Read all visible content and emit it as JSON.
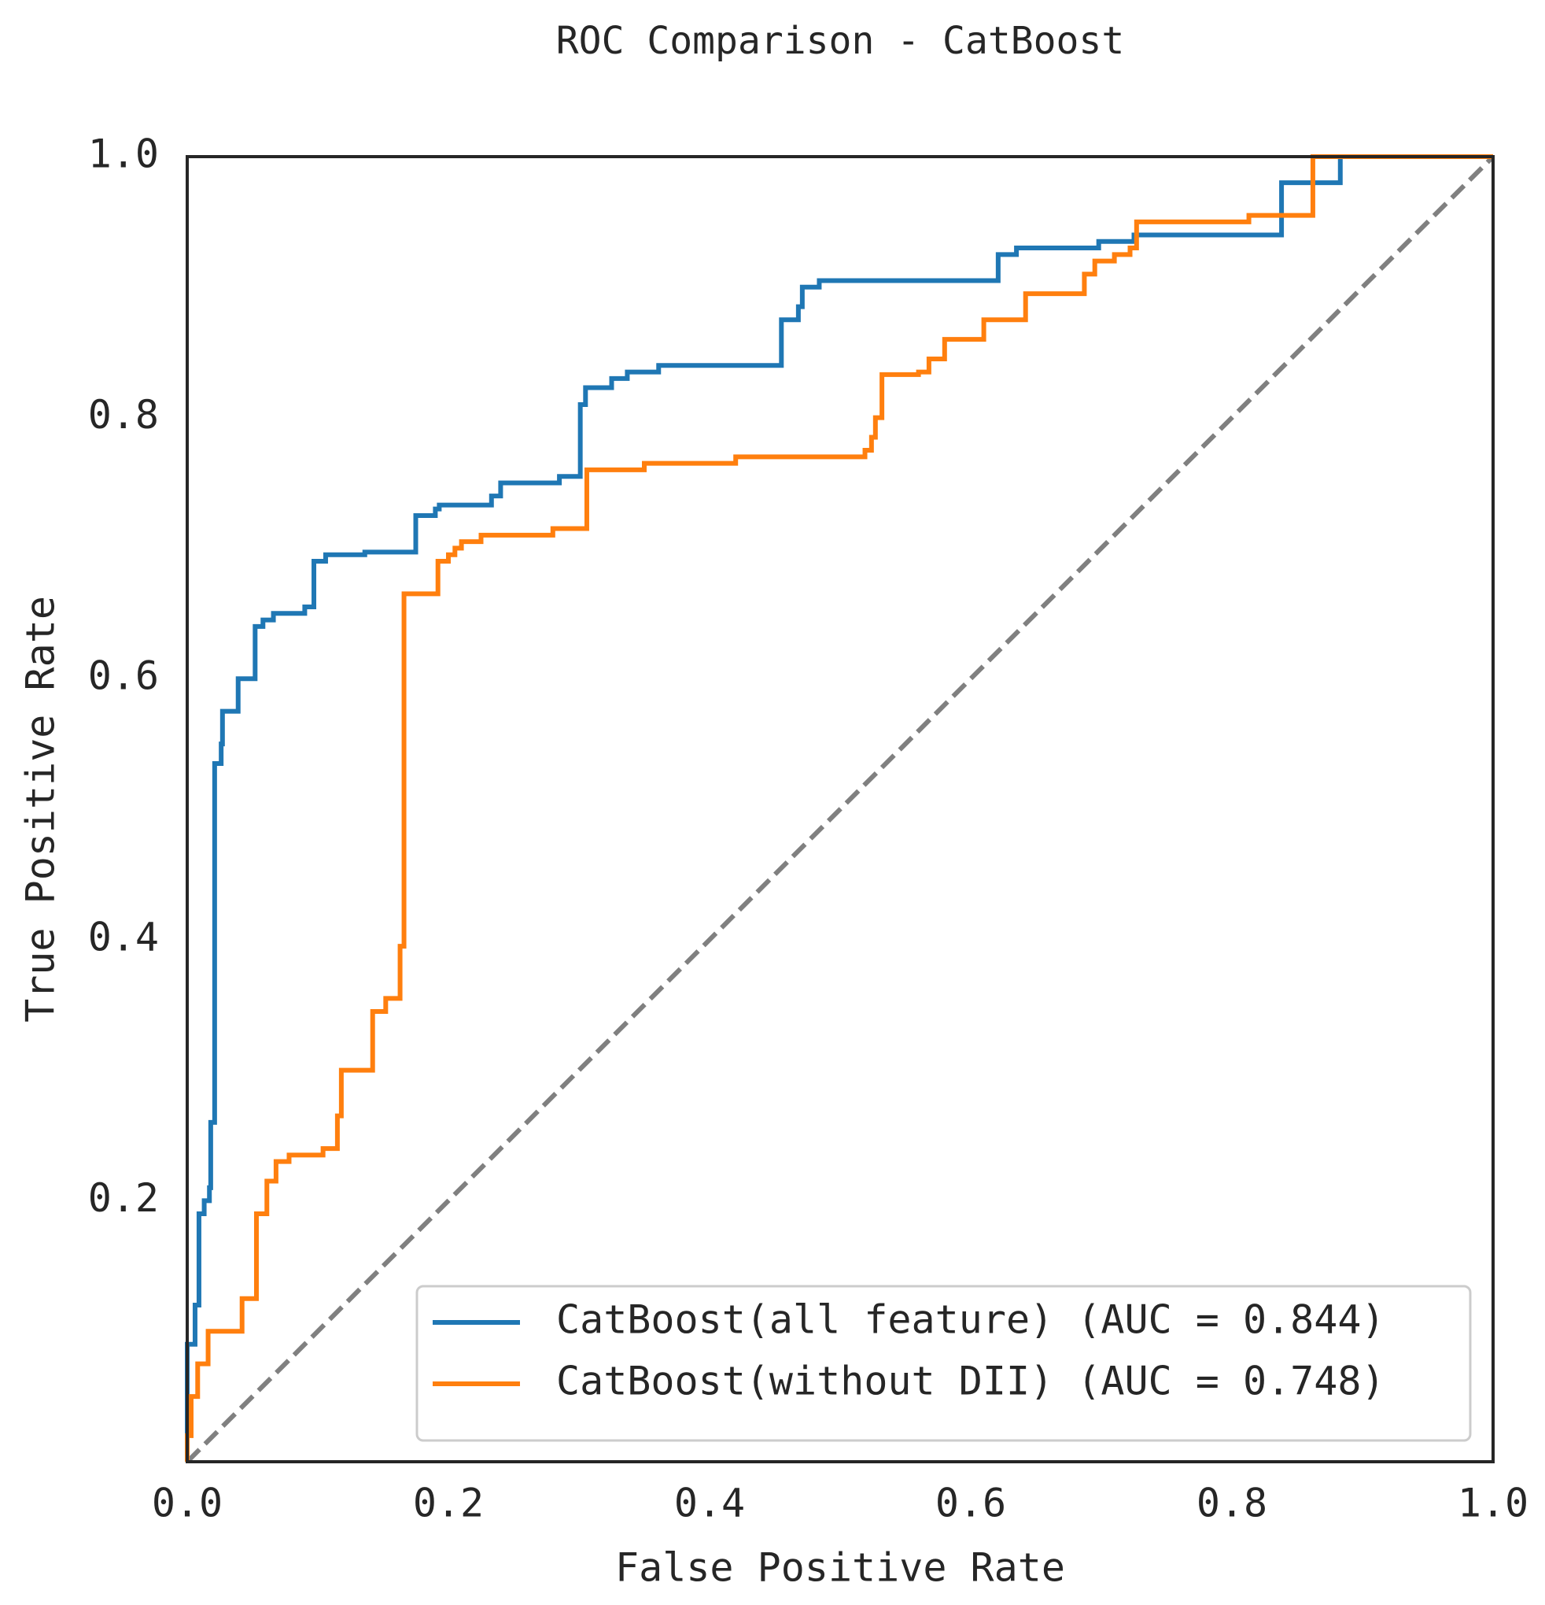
{
  "chart_data": {
    "type": "line",
    "title": "ROC Comparison - CatBoost",
    "xlabel": "False Positive Rate",
    "ylabel": "True Positive Rate",
    "xlim": [
      0,
      1
    ],
    "ylim": [
      0,
      1
    ],
    "xticks": [
      {
        "value": 0,
        "label": "0.0"
      },
      {
        "value": 0.2,
        "label": "0.2"
      },
      {
        "value": 0.4,
        "label": "0.4"
      },
      {
        "value": 0.6,
        "label": "0.6"
      },
      {
        "value": 0.8,
        "label": "0.8"
      },
      {
        "value": 1,
        "label": "1.0"
      }
    ],
    "yticks": [
      0.2,
      0.4,
      0.6,
      0.8,
      {
        "value": 1,
        "label": "1.0"
      }
    ],
    "legend": "lower right",
    "series": [
      {
        "name": "CatBoost(all feature) (AUC = 0.844)",
        "color": "#1f77b4",
        "x": [
          0,
          0,
          0.006,
          0.006,
          0.009,
          0.009,
          0.013,
          0.013,
          0.017,
          0.017,
          0.018,
          0.018,
          0.021,
          0.021,
          0.026,
          0.026,
          0.027,
          0.027,
          0.039,
          0.039,
          0.052,
          0.052,
          0.058,
          0.058,
          0.066,
          0.066,
          0.09,
          0.09,
          0.097,
          0.097,
          0.106,
          0.106,
          0.136,
          0.136,
          0.175,
          0.175,
          0.19,
          0.19,
          0.193,
          0.193,
          0.233,
          0.233,
          0.24,
          0.24,
          0.285,
          0.285,
          0.301,
          0.301,
          0.305,
          0.305,
          0.325,
          0.325,
          0.337,
          0.337,
          0.361,
          0.361,
          0.455,
          0.455,
          0.468,
          0.468,
          0.471,
          0.471,
          0.484,
          0.484,
          0.621,
          0.621,
          0.635,
          0.635,
          0.698,
          0.698,
          0.725,
          0.725,
          0.838,
          0.838,
          0.883,
          0.883,
          1
        ],
        "y": [
          0,
          0.09,
          0.09,
          0.12,
          0.12,
          0.19,
          0.19,
          0.2,
          0.2,
          0.21,
          0.21,
          0.26,
          0.26,
          0.535,
          0.535,
          0.55,
          0.55,
          0.575,
          0.575,
          0.6,
          0.6,
          0.64,
          0.64,
          0.645,
          0.645,
          0.65,
          0.65,
          0.655,
          0.655,
          0.69,
          0.69,
          0.695,
          0.695,
          0.697,
          0.697,
          0.725,
          0.725,
          0.73,
          0.73,
          0.733,
          0.733,
          0.74,
          0.74,
          0.75,
          0.75,
          0.755,
          0.755,
          0.81,
          0.81,
          0.823,
          0.823,
          0.83,
          0.83,
          0.835,
          0.835,
          0.84,
          0.84,
          0.875,
          0.875,
          0.885,
          0.885,
          0.9,
          0.9,
          0.905,
          0.905,
          0.925,
          0.925,
          0.93,
          0.93,
          0.935,
          0.935,
          0.94,
          0.94,
          0.98,
          0.98,
          1,
          1
        ]
      },
      {
        "name": "CatBoost(without DII) (AUC = 0.748)",
        "color": "#ff7f0e",
        "x": [
          0,
          0,
          0.003,
          0.003,
          0.008,
          0.008,
          0.016,
          0.016,
          0.042,
          0.042,
          0.053,
          0.053,
          0.061,
          0.061,
          0.068,
          0.068,
          0.078,
          0.078,
          0.104,
          0.104,
          0.115,
          0.115,
          0.118,
          0.118,
          0.142,
          0.142,
          0.152,
          0.152,
          0.163,
          0.163,
          0.166,
          0.166,
          0.192,
          0.192,
          0.2,
          0.2,
          0.205,
          0.205,
          0.21,
          0.21,
          0.225,
          0.225,
          0.28,
          0.28,
          0.306,
          0.306,
          0.35,
          0.35,
          0.42,
          0.42,
          0.519,
          0.519,
          0.524,
          0.524,
          0.527,
          0.527,
          0.532,
          0.532,
          0.56,
          0.56,
          0.568,
          0.568,
          0.58,
          0.58,
          0.61,
          0.61,
          0.642,
          0.642,
          0.687,
          0.687,
          0.695,
          0.695,
          0.71,
          0.71,
          0.722,
          0.722,
          0.727,
          0.727,
          0.813,
          0.813,
          0.862,
          0.862,
          1
        ],
        "y": [
          0,
          0.02,
          0.02,
          0.05,
          0.05,
          0.075,
          0.075,
          0.1,
          0.1,
          0.125,
          0.125,
          0.19,
          0.19,
          0.215,
          0.215,
          0.23,
          0.23,
          0.235,
          0.235,
          0.24,
          0.24,
          0.265,
          0.265,
          0.3,
          0.3,
          0.345,
          0.345,
          0.355,
          0.355,
          0.395,
          0.395,
          0.665,
          0.665,
          0.69,
          0.69,
          0.695,
          0.695,
          0.7,
          0.7,
          0.705,
          0.705,
          0.71,
          0.71,
          0.715,
          0.715,
          0.76,
          0.76,
          0.765,
          0.765,
          0.77,
          0.77,
          0.775,
          0.775,
          0.785,
          0.785,
          0.8,
          0.8,
          0.833,
          0.833,
          0.835,
          0.835,
          0.845,
          0.845,
          0.86,
          0.86,
          0.875,
          0.875,
          0.895,
          0.895,
          0.91,
          0.91,
          0.92,
          0.92,
          0.925,
          0.925,
          0.93,
          0.93,
          0.95,
          0.95,
          0.955,
          0.955,
          1,
          1
        ]
      }
    ]
  }
}
